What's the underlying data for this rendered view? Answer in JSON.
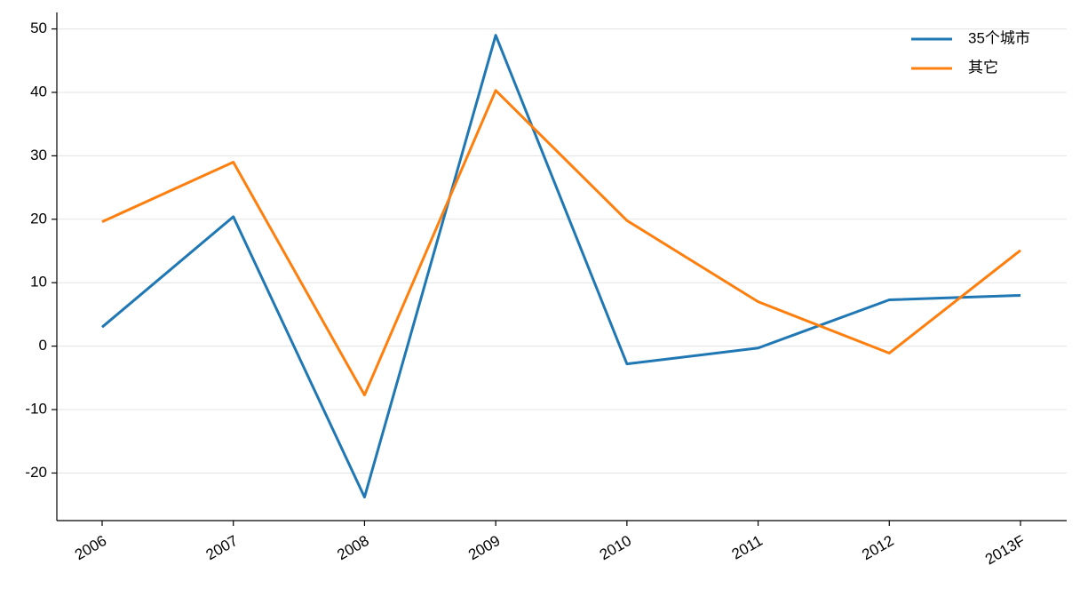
{
  "chart_data": {
    "type": "line",
    "categories": [
      "2006",
      "2007",
      "2008",
      "2009",
      "2010",
      "2011",
      "2012",
      "2013F"
    ],
    "series": [
      {
        "name": "35个城市",
        "color": "#1f77b4",
        "values": [
          3.0,
          20.4,
          -23.8,
          49.0,
          -2.8,
          -0.3,
          7.3,
          8.0
        ]
      },
      {
        "name": "其它",
        "color": "#ff7f0e",
        "values": [
          19.6,
          29.0,
          -7.7,
          40.3,
          19.8,
          7.0,
          -1.1,
          15.1
        ]
      }
    ],
    "ylim": [
      -27.5,
      52.6
    ],
    "yticks": [
      -20,
      -10,
      0,
      10,
      20,
      30,
      40,
      50
    ],
    "grid": true,
    "legend": "upper right"
  }
}
